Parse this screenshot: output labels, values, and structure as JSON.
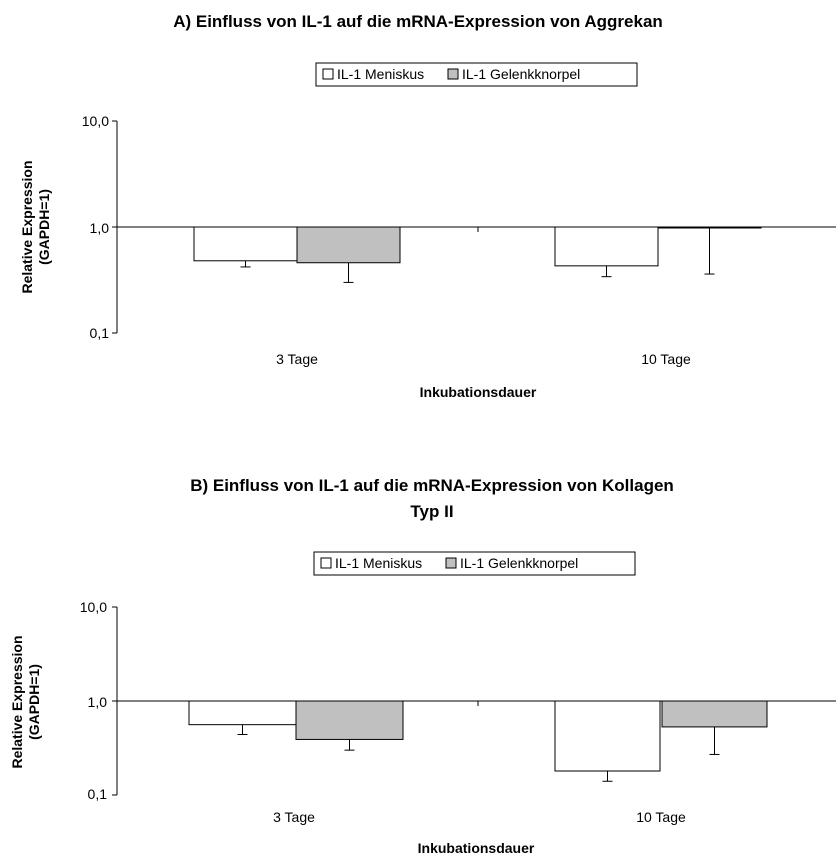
{
  "chart_data": [
    {
      "type": "bar",
      "title": "A) Einfluss von IL-1 auf die mRNA-Expression von Aggrekan",
      "title_line2": "",
      "xlabel": "Inkubationsdauer",
      "ylabel_line1": "Relative Expression",
      "ylabel_line2": "(GAPDH=1)",
      "yscale": "log",
      "ylim": [
        0.1,
        10.0
      ],
      "yticks": [
        "10,0",
        "1,0",
        "0,1"
      ],
      "legend_position": "top-center",
      "categories": [
        "3 Tage",
        "10 Tage"
      ],
      "series": [
        {
          "name": "IL-1 Meniskus",
          "values": [
            0.48,
            0.43
          ],
          "error_low": [
            0.42,
            0.34
          ],
          "color": "#ffffff"
        },
        {
          "name": "IL-1 Gelenkknorpel",
          "values": [
            0.46,
            0.98
          ],
          "error_low": [
            0.3,
            0.36
          ],
          "color": "#c0c0c0"
        }
      ]
    },
    {
      "type": "bar",
      "title": "B) Einfluss von IL-1 auf die mRNA-Expression von Kollagen",
      "title_line2": "Typ II",
      "xlabel": "Inkubationsdauer",
      "ylabel_line1": "Relative Expression",
      "ylabel_line2": "(GAPDH=1)",
      "yscale": "log",
      "ylim": [
        0.1,
        10.0
      ],
      "yticks": [
        "10,0",
        "1,0",
        "0,1"
      ],
      "legend_position": "top-center",
      "categories": [
        "3 Tage",
        "10 Tage"
      ],
      "series": [
        {
          "name": "IL-1 Meniskus",
          "values": [
            0.56,
            0.18
          ],
          "error_low": [
            0.44,
            0.14
          ],
          "color": "#ffffff"
        },
        {
          "name": "IL-1 Gelenkknorpel",
          "values": [
            0.39,
            0.53
          ],
          "error_low": [
            0.3,
            0.27
          ],
          "color": "#c0c0c0"
        }
      ]
    }
  ]
}
